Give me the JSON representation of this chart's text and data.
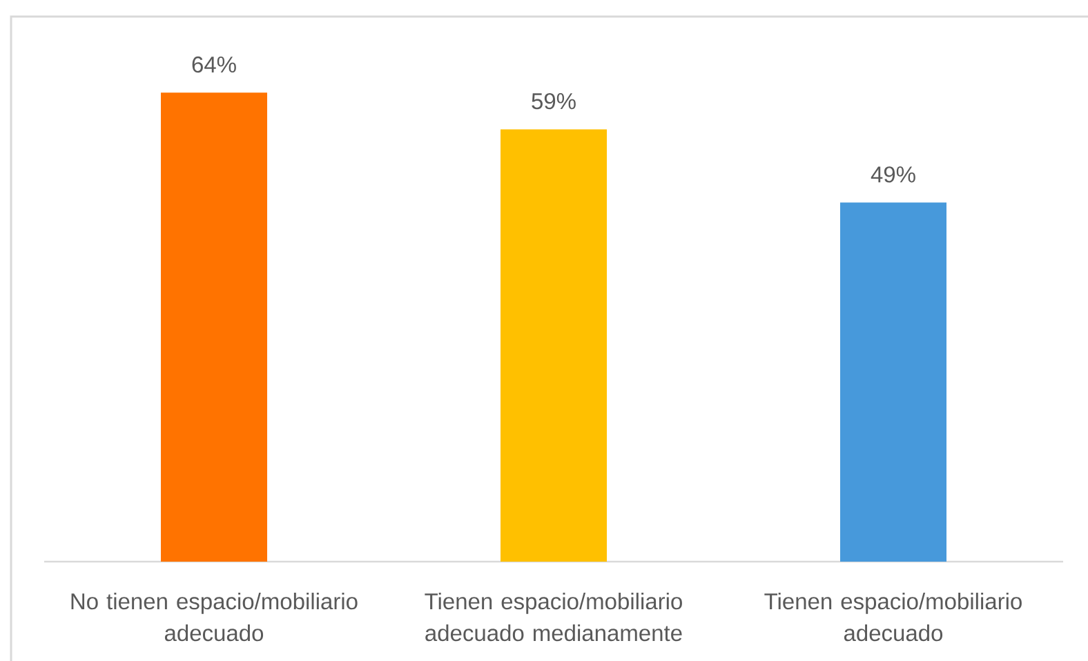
{
  "chart_data": {
    "type": "bar",
    "categories": [
      "No tienen espacio/mobiliario adecuado",
      "Tienen espacio/mobiliario adecuado medianamente",
      "Tienen espacio/mobiliario adecuado"
    ],
    "values": [
      64,
      59,
      49
    ],
    "colors": [
      "#ff7300",
      "#ffc000",
      "#4799db"
    ],
    "value_labels": [
      "64%",
      "59%",
      "49%"
    ]
  }
}
